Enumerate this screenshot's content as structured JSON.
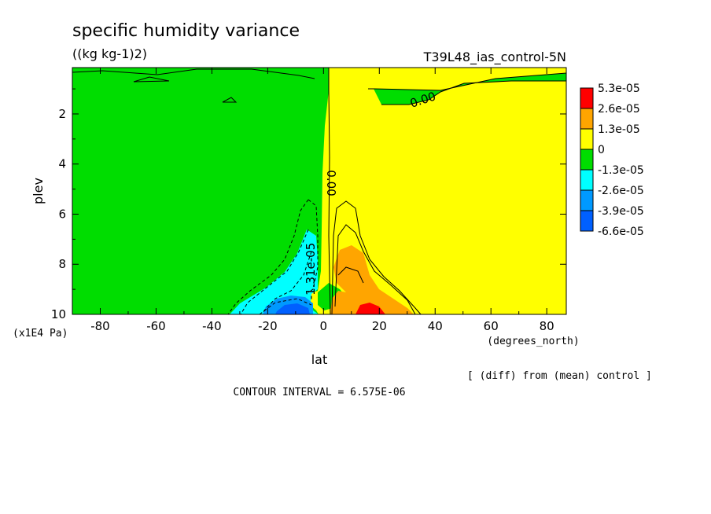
{
  "chart_data": {
    "type": "contour",
    "title": "specific humidity variance",
    "units": "((kg kg-1)2)",
    "run_label": "T39L48_ias_control-5N",
    "xlabel": "lat",
    "xunits": "(degrees_north)",
    "ylabel": "plev",
    "yunits": "(x1E4 Pa)",
    "xlim": [
      -90,
      87
    ],
    "ylim": [
      0.15,
      10
    ],
    "y_inverted": true,
    "x_ticks": [
      "-80",
      "-60",
      "-40",
      "-20",
      "0",
      "20",
      "40",
      "60",
      "80"
    ],
    "x_tick_values": [
      -80,
      -60,
      -40,
      -20,
      0,
      20,
      40,
      60,
      80
    ],
    "y_ticks": [
      "2",
      "4",
      "6",
      "8",
      "10"
    ],
    "y_tick_values": [
      2,
      4,
      6,
      8,
      10
    ],
    "legend": [
      {
        "label": "5.3e-05",
        "color": "#ff0000"
      },
      {
        "label": "2.6e-05",
        "color": "#ffa500"
      },
      {
        "label": "1.3e-05",
        "color": "#ffff00"
      },
      {
        "label": "0",
        "color": "#00dd00"
      },
      {
        "label": "-1.3e-05",
        "color": "#00ffff"
      },
      {
        "label": "-2.6e-05",
        "color": "#0099ff"
      },
      {
        "label": "-3.9e-05",
        "color": "#0060ff"
      },
      {
        "label": "-6.6e-05",
        "color": null
      }
    ],
    "contour_labels": [
      "0.00",
      "0.00",
      "-1.31e-05"
    ],
    "note": "[ (diff) from (mean) control ]",
    "contour_interval": "CONTOUR INTERVAL = 6.575E-06",
    "fill": {
      "green": "#00dd00",
      "yellow": "#ffff00",
      "cyan": "#00ffff",
      "light_blue": "#0099ff",
      "blue": "#0060ff",
      "orange": "#ffa500",
      "red": "#ff0000"
    }
  }
}
